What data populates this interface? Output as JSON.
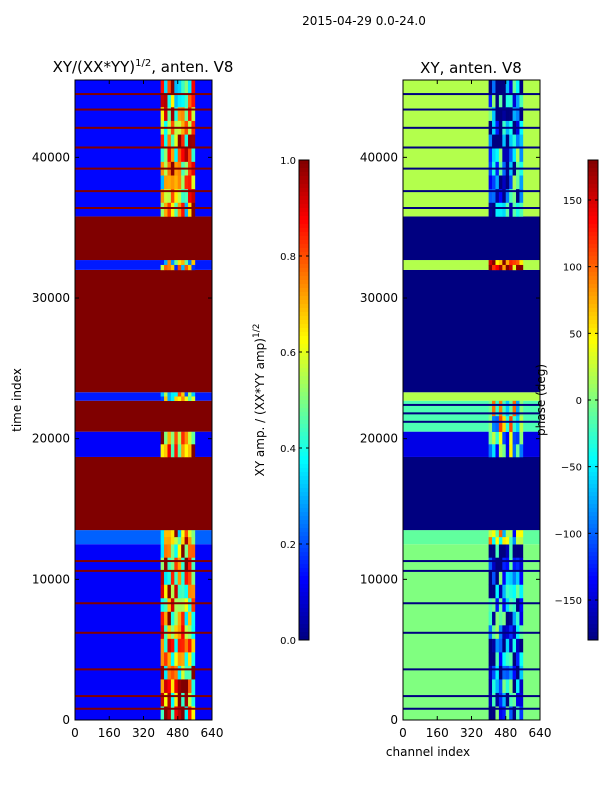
{
  "figure": {
    "suptitle": "2015-04-29 0.0-24.0",
    "shared_xlabel": "channel index"
  },
  "chart_data": [
    {
      "type": "heatmap",
      "title_prefix": "XY/(XX*YY)",
      "title_exp": "1/2",
      "title_suffix": ", anten. V8",
      "ylabel": "time index",
      "xlim": [
        0,
        640
      ],
      "ylim": [
        0,
        45500
      ],
      "xticks": [
        0,
        160,
        320,
        480,
        640
      ],
      "yticks": [
        0,
        10000,
        20000,
        30000,
        40000
      ],
      "colormap": "jet",
      "colorbar": {
        "label_text": "XY amp. / (XX*YY amp)",
        "label_exp": "1/2",
        "min": 0.0,
        "max": 1.0,
        "ticks": [
          "0.0",
          "0.2",
          "0.4",
          "0.6",
          "0.8",
          "1.0"
        ]
      },
      "rows": [
        {
          "y0": 0,
          "y1": 12500,
          "base": 0.12,
          "active": 0.7
        },
        {
          "y0": 12500,
          "y1": 13500,
          "base": 0.22,
          "active": 0.65
        },
        {
          "y0": 13500,
          "y1": 18700,
          "base": 1.0,
          "active": 1.0
        },
        {
          "y0": 18700,
          "y1": 20500,
          "base": 0.12,
          "active": 0.75
        },
        {
          "y0": 20500,
          "y1": 22700,
          "base": 1.0,
          "active": 1.0
        },
        {
          "y0": 22700,
          "y1": 23300,
          "base": 0.15,
          "active": 0.5
        },
        {
          "y0": 23300,
          "y1": 32000,
          "base": 1.0,
          "active": 1.0
        },
        {
          "y0": 32000,
          "y1": 32700,
          "base": 0.15,
          "active": 0.5
        },
        {
          "y0": 32700,
          "y1": 35800,
          "base": 1.0,
          "active": 1.0
        },
        {
          "y0": 35800,
          "y1": 45500,
          "base": 0.13,
          "active": 0.65
        }
      ],
      "stripes": [
        800,
        1700,
        3600,
        6200,
        8300,
        10600,
        11300,
        15100,
        15900,
        17100,
        18100,
        21200,
        21800,
        22400,
        36400,
        37600,
        39200,
        40700,
        42100,
        43400,
        44500
      ],
      "stripe_value": 1.0,
      "active_channels": [
        400,
        560
      ]
    },
    {
      "type": "heatmap",
      "title": "XY, anten. V8",
      "ylabel": "",
      "xlim": [
        0,
        640
      ],
      "ylim": [
        0,
        45500
      ],
      "xticks": [
        0,
        160,
        320,
        480,
        640
      ],
      "yticks": [
        0,
        10000,
        20000,
        30000,
        40000
      ],
      "colormap": "jet",
      "colorbar": {
        "label_text": "phase (deg)",
        "min": -180,
        "max": 180,
        "ticks": [
          "−150",
          "−100",
          "−50",
          "0",
          "50",
          "100",
          "150"
        ]
      },
      "rows": [
        {
          "y0": 0,
          "y1": 12500,
          "base": 0.5,
          "active": 0.2
        },
        {
          "y0": 12500,
          "y1": 13500,
          "base": 0.47,
          "active": 0.45
        },
        {
          "y0": 13500,
          "y1": 18700,
          "base": 0.0,
          "active": 0.0
        },
        {
          "y0": 18700,
          "y1": 20500,
          "base": 0.1,
          "active": 0.3
        },
        {
          "y0": 20500,
          "y1": 22700,
          "base": 0.45,
          "active": 0.5
        },
        {
          "y0": 22700,
          "y1": 23300,
          "base": 0.55,
          "active": 0.55
        },
        {
          "y0": 23300,
          "y1": 32000,
          "base": 0.0,
          "active": 0.0
        },
        {
          "y0": 32000,
          "y1": 32700,
          "base": 0.55,
          "active": 0.85
        },
        {
          "y0": 32700,
          "y1": 35800,
          "base": 0.0,
          "active": 0.0
        },
        {
          "y0": 35800,
          "y1": 45500,
          "base": 0.55,
          "active": 0.2
        }
      ],
      "stripes": [
        800,
        1700,
        3600,
        6200,
        8300,
        10600,
        11300,
        15100,
        15900,
        17100,
        18100,
        21200,
        21800,
        22400,
        36400,
        37600,
        39200,
        40700,
        42100,
        43400,
        44500
      ],
      "stripe_value": 0.0,
      "active_channels": [
        400,
        560
      ]
    }
  ]
}
